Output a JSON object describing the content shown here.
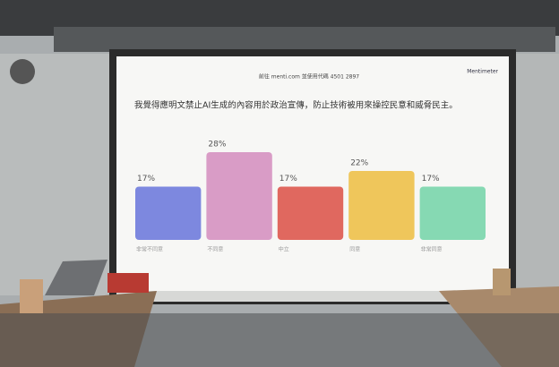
{
  "chart_data": {
    "type": "bar",
    "header": "前往 menti.com 並使用代碼 4501 2897",
    "brand": "Mentimeter",
    "title": "我覺得應明文禁止AI生成的內容用於政治宣傳，防止技術被用來操控民意和威脅民主。",
    "categories": [
      "非常不同意",
      "不同意",
      "中立",
      "同意",
      "非常同意"
    ],
    "values": [
      17,
      28,
      17,
      22,
      17
    ],
    "value_labels": [
      "17%",
      "28%",
      "17%",
      "22%",
      "17%"
    ],
    "colors": [
      "#7d88df",
      "#d99cc6",
      "#e0685f",
      "#efc65b",
      "#86d9b3"
    ]
  }
}
